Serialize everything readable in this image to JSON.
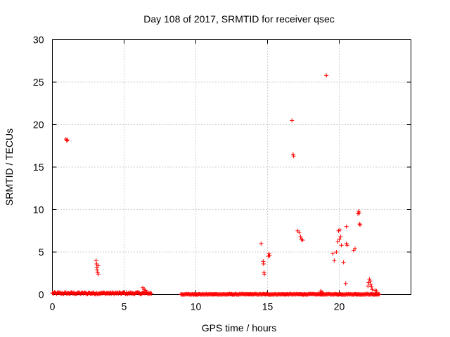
{
  "chart_data": {
    "type": "scatter",
    "title": "Day 108 of 2017, SRMTID for receiver qsec",
    "xlabel": "GPS time / hours",
    "ylabel": "SRMTID / TECUs",
    "xlim": [
      0,
      25
    ],
    "ylim": [
      0,
      30
    ],
    "xticks": [
      0,
      5,
      10,
      15,
      20
    ],
    "xtick_labels": [
      "0",
      "5",
      "10",
      "15",
      "20"
    ],
    "yticks": [
      0,
      5,
      10,
      15,
      20,
      25,
      30
    ],
    "ytick_labels": [
      "0",
      "5",
      "10",
      "15",
      "20",
      "25",
      "30"
    ],
    "grid": true,
    "marker": "+",
    "color": "#ff0000",
    "series": [
      {
        "name": "SRMTID",
        "segments": [
          {
            "x_start": 0.0,
            "x_end": 6.9,
            "step": 0.05,
            "y_base": 0.15,
            "y_jitter": 0.25
          },
          {
            "x_start": 8.95,
            "x_end": 22.8,
            "step": 0.05,
            "y_base": 0.02,
            "y_jitter": 0.12
          }
        ],
        "points": [
          {
            "x": 0.95,
            "y": 18.3
          },
          {
            "x": 1.0,
            "y": 18.1
          },
          {
            "x": 1.05,
            "y": 18.2
          },
          {
            "x": 3.05,
            "y": 4.0
          },
          {
            "x": 3.08,
            "y": 3.6
          },
          {
            "x": 3.1,
            "y": 3.2
          },
          {
            "x": 3.12,
            "y": 2.9
          },
          {
            "x": 3.15,
            "y": 2.6
          },
          {
            "x": 3.18,
            "y": 3.4
          },
          {
            "x": 3.2,
            "y": 2.4
          },
          {
            "x": 6.3,
            "y": 0.8
          },
          {
            "x": 6.4,
            "y": 0.6
          },
          {
            "x": 6.5,
            "y": 0.5
          },
          {
            "x": 14.55,
            "y": 6.0
          },
          {
            "x": 14.7,
            "y": 3.9
          },
          {
            "x": 14.72,
            "y": 3.6
          },
          {
            "x": 14.75,
            "y": 2.6
          },
          {
            "x": 14.78,
            "y": 2.4
          },
          {
            "x": 15.05,
            "y": 4.5
          },
          {
            "x": 15.1,
            "y": 4.8
          },
          {
            "x": 15.15,
            "y": 4.6
          },
          {
            "x": 16.7,
            "y": 20.5
          },
          {
            "x": 16.78,
            "y": 16.5
          },
          {
            "x": 16.82,
            "y": 16.3
          },
          {
            "x": 17.1,
            "y": 7.5
          },
          {
            "x": 17.2,
            "y": 7.3
          },
          {
            "x": 17.3,
            "y": 6.8
          },
          {
            "x": 17.35,
            "y": 6.5
          },
          {
            "x": 17.45,
            "y": 6.4
          },
          {
            "x": 18.7,
            "y": 0.4
          },
          {
            "x": 18.8,
            "y": 0.3
          },
          {
            "x": 19.1,
            "y": 25.8
          },
          {
            "x": 19.55,
            "y": 4.8
          },
          {
            "x": 19.65,
            "y": 4.0
          },
          {
            "x": 19.8,
            "y": 5.0
          },
          {
            "x": 19.9,
            "y": 6.2
          },
          {
            "x": 19.95,
            "y": 7.5
          },
          {
            "x": 20.0,
            "y": 6.5
          },
          {
            "x": 20.05,
            "y": 7.6
          },
          {
            "x": 20.1,
            "y": 6.8
          },
          {
            "x": 20.15,
            "y": 5.8
          },
          {
            "x": 20.3,
            "y": 3.8
          },
          {
            "x": 20.45,
            "y": 1.3
          },
          {
            "x": 20.5,
            "y": 8.0
          },
          {
            "x": 20.5,
            "y": 6.0
          },
          {
            "x": 20.55,
            "y": 5.8
          },
          {
            "x": 21.0,
            "y": 5.2
          },
          {
            "x": 21.1,
            "y": 5.4
          },
          {
            "x": 21.3,
            "y": 9.5
          },
          {
            "x": 21.35,
            "y": 9.8
          },
          {
            "x": 21.4,
            "y": 9.6
          },
          {
            "x": 21.42,
            "y": 8.3
          },
          {
            "x": 21.45,
            "y": 8.2
          },
          {
            "x": 22.0,
            "y": 1.0
          },
          {
            "x": 22.05,
            "y": 1.4
          },
          {
            "x": 22.1,
            "y": 1.8
          },
          {
            "x": 22.15,
            "y": 1.6
          },
          {
            "x": 22.2,
            "y": 1.2
          },
          {
            "x": 22.25,
            "y": 0.9
          },
          {
            "x": 22.3,
            "y": 0.6
          },
          {
            "x": 22.5,
            "y": 0.5
          },
          {
            "x": 22.6,
            "y": 0.4
          }
        ]
      }
    ]
  }
}
